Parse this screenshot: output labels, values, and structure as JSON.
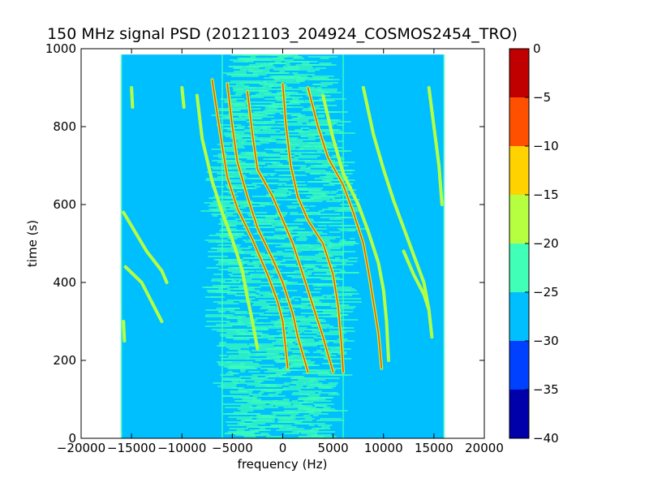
{
  "chart_data": {
    "type": "heatmap",
    "title": "150 MHz signal PSD (20121103_204924_COSMOS2454_TRO)",
    "xlabel": "frequency (Hz)",
    "ylabel": "time (s)",
    "xlim": [
      -20000,
      20000
    ],
    "ylim": [
      0,
      1000
    ],
    "xticks": [
      "−20000",
      "−15000",
      "−10000",
      "−5000",
      "0",
      "5000",
      "10000",
      "15000",
      "20000"
    ],
    "yticks": [
      "0",
      "200",
      "400",
      "600",
      "800",
      "1000"
    ],
    "data_extent": {
      "x": [
        -16000,
        16000
      ],
      "y": [
        0,
        985
      ]
    },
    "colorbar": {
      "range": [
        -40,
        0
      ],
      "ticks": [
        "−40",
        "−35",
        "−30",
        "−25",
        "−20",
        "−15",
        "−10",
        "−5",
        "0"
      ],
      "levels": [
        {
          "from": -40,
          "to": -35,
          "color": "#0000aa"
        },
        {
          "from": -35,
          "to": -30,
          "color": "#0040ff"
        },
        {
          "from": -30,
          "to": -25,
          "color": "#00bfff"
        },
        {
          "from": -25,
          "to": -20,
          "color": "#40ffb6"
        },
        {
          "from": -20,
          "to": -15,
          "color": "#b6ff40"
        },
        {
          "from": -15,
          "to": -10,
          "color": "#ffd200"
        },
        {
          "from": -10,
          "to": -5,
          "color": "#ff5000"
        },
        {
          "from": -5,
          "to": 0,
          "color": "#c00000"
        }
      ]
    },
    "background_level_db": -30,
    "central_band_level_db": -25,
    "doppler_traces": [
      {
        "points": [
          [
            -15800,
            580
          ],
          [
            -13500,
            480
          ],
          [
            -12000,
            430
          ],
          [
            -11500,
            400
          ]
        ],
        "color": "#b6ff40"
      },
      {
        "points": [
          [
            -15600,
            440
          ],
          [
            -14000,
            400
          ],
          [
            -13000,
            350
          ],
          [
            -12000,
            300
          ]
        ],
        "color": "#b6ff40"
      },
      {
        "points": [
          [
            -15000,
            900
          ],
          [
            -14900,
            850
          ]
        ],
        "color": "#b6ff40"
      },
      {
        "points": [
          [
            -15800,
            300
          ],
          [
            -15700,
            250
          ]
        ],
        "color": "#b6ff40"
      },
      {
        "points": [
          [
            -10000,
            900
          ],
          [
            -9800,
            850
          ]
        ],
        "color": "#b6ff40"
      },
      {
        "points": [
          [
            -8500,
            880
          ],
          [
            -8000,
            770
          ],
          [
            -7000,
            660
          ],
          [
            -6000,
            580
          ],
          [
            -5000,
            510
          ],
          [
            -4000,
            430
          ],
          [
            -3500,
            360
          ],
          [
            -3000,
            300
          ],
          [
            -2500,
            230
          ]
        ],
        "color": "#b6ff40"
      },
      {
        "points": [
          [
            -7000,
            920
          ],
          [
            -6000,
            750
          ],
          [
            -5500,
            670
          ],
          [
            -4500,
            590
          ],
          [
            -3000,
            510
          ],
          [
            -1500,
            420
          ],
          [
            -500,
            350
          ],
          [
            0,
            300
          ],
          [
            500,
            180
          ]
        ],
        "color": "#ff5000"
      },
      {
        "points": [
          [
            -5500,
            910
          ],
          [
            -5000,
            800
          ],
          [
            -4500,
            710
          ],
          [
            -3500,
            620
          ],
          [
            -2500,
            540
          ],
          [
            -1000,
            460
          ],
          [
            0,
            400
          ],
          [
            1000,
            320
          ],
          [
            1500,
            260
          ],
          [
            2500,
            170
          ]
        ],
        "color": "#ff5000"
      },
      {
        "points": [
          [
            -3500,
            890
          ],
          [
            -3000,
            780
          ],
          [
            -2500,
            690
          ],
          [
            -1000,
            620
          ],
          [
            0,
            560
          ],
          [
            1000,
            500
          ],
          [
            2000,
            420
          ],
          [
            3000,
            340
          ],
          [
            4000,
            260
          ],
          [
            5000,
            170
          ]
        ],
        "color": "#ff5000"
      },
      {
        "points": [
          [
            0,
            910
          ],
          [
            300,
            810
          ],
          [
            800,
            700
          ],
          [
            1500,
            620
          ],
          [
            2500,
            560
          ],
          [
            4000,
            500
          ],
          [
            5000,
            420
          ],
          [
            5500,
            340
          ],
          [
            5800,
            250
          ],
          [
            6000,
            170
          ]
        ],
        "color": "#ff5000"
      },
      {
        "points": [
          [
            2500,
            900
          ],
          [
            3500,
            800
          ],
          [
            4500,
            720
          ],
          [
            6000,
            650
          ],
          [
            7000,
            580
          ],
          [
            8000,
            500
          ],
          [
            8500,
            430
          ],
          [
            9000,
            350
          ],
          [
            9500,
            270
          ],
          [
            9800,
            180
          ]
        ],
        "color": "#ff5000"
      },
      {
        "points": [
          [
            4000,
            880
          ],
          [
            5000,
            770
          ],
          [
            6000,
            680
          ],
          [
            7500,
            600
          ],
          [
            8500,
            530
          ],
          [
            9500,
            450
          ],
          [
            10000,
            380
          ],
          [
            10300,
            300
          ],
          [
            10500,
            200
          ]
        ],
        "color": "#b6ff40"
      },
      {
        "points": [
          [
            8000,
            900
          ],
          [
            9000,
            780
          ],
          [
            10000,
            690
          ],
          [
            11000,
            610
          ],
          [
            12000,
            540
          ],
          [
            13000,
            470
          ],
          [
            14000,
            400
          ],
          [
            14500,
            330
          ],
          [
            14800,
            260
          ]
        ],
        "color": "#b6ff40"
      },
      {
        "points": [
          [
            12000,
            480
          ],
          [
            13000,
            420
          ],
          [
            14000,
            370
          ],
          [
            14500,
            330
          ]
        ],
        "color": "#b6ff40"
      },
      {
        "points": [
          [
            14500,
            900
          ],
          [
            15000,
            800
          ],
          [
            15500,
            700
          ],
          [
            15800,
            600
          ]
        ],
        "color": "#b6ff40"
      }
    ]
  }
}
